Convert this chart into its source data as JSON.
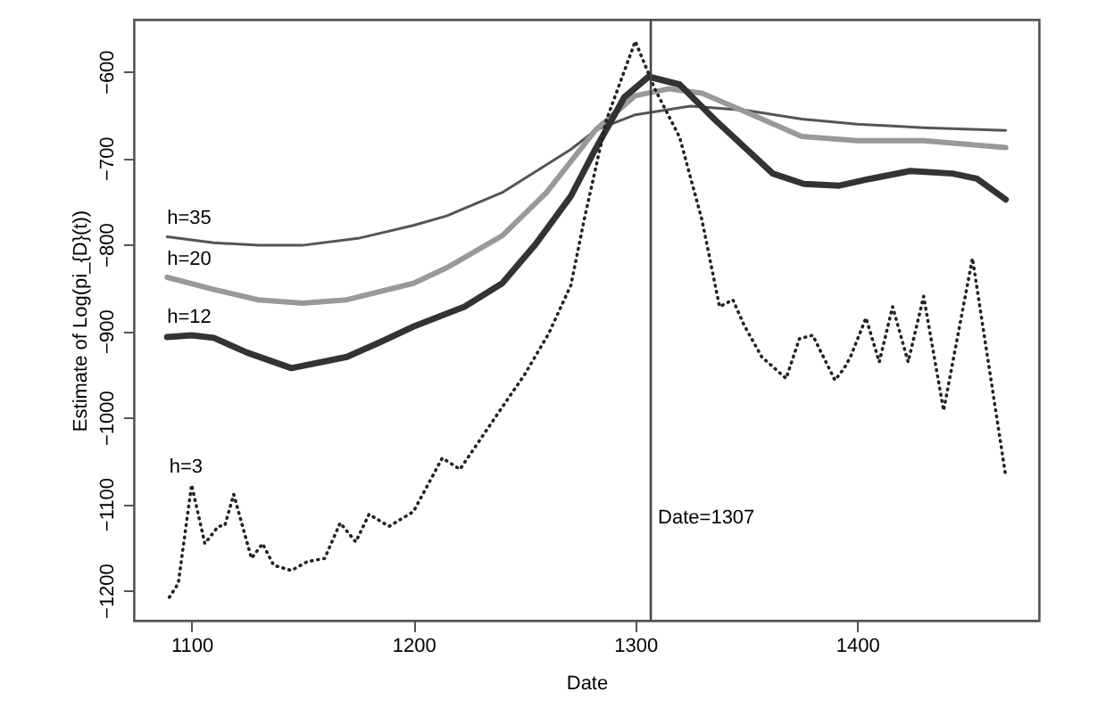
{
  "chart_data": {
    "type": "line",
    "xlabel": "Date",
    "ylabel": "Estimate of Log(pi_{D}(t))",
    "xlim": [
      1074,
      1482
    ],
    "ylim": [
      -1235,
      -540
    ],
    "xticks": [
      1100,
      1200,
      1300,
      1400
    ],
    "yticks": [
      -1200,
      -1100,
      -1000,
      -900,
      -800,
      -700,
      -600
    ],
    "marker": "none",
    "series": [
      {
        "name": "h=35",
        "color": "#555555",
        "line_style": "solid",
        "x": [
          1089,
          1110,
          1130,
          1150,
          1175,
          1200,
          1215,
          1240,
          1271,
          1282,
          1300,
          1325,
          1350,
          1375,
          1400,
          1430,
          1467
        ],
        "values": [
          -791,
          -798,
          -801,
          -801,
          -793,
          -778,
          -767,
          -740,
          -690,
          -668,
          -650,
          -640,
          -645,
          -655,
          -661,
          -665,
          -668
        ]
      },
      {
        "name": "h=20",
        "color": "#999999",
        "line_style": "solid",
        "x": [
          1089,
          1110,
          1130,
          1150,
          1170,
          1200,
          1215,
          1240,
          1260,
          1282,
          1300,
          1315,
          1330,
          1350,
          1375,
          1400,
          1430,
          1467
        ],
        "values": [
          -838,
          -852,
          -864,
          -868,
          -864,
          -845,
          -827,
          -790,
          -740,
          -668,
          -628,
          -620,
          -625,
          -647,
          -675,
          -680,
          -680,
          -688
        ]
      },
      {
        "name": "h=12",
        "color": "#333333",
        "line_style": "solid",
        "x": [
          1089,
          1100,
          1110,
          1125,
          1145,
          1170,
          1185,
          1200,
          1223,
          1240,
          1255,
          1271,
          1282,
          1295,
          1306,
          1320,
          1336,
          1362,
          1376,
          1392,
          1406,
          1424,
          1443,
          1454,
          1467
        ],
        "values": [
          -907,
          -905,
          -908,
          -925,
          -943,
          -930,
          -913,
          -895,
          -872,
          -845,
          -800,
          -744,
          -690,
          -630,
          -606,
          -615,
          -656,
          -718,
          -730,
          -732,
          -724,
          -715,
          -718,
          -724,
          -748
        ]
      },
      {
        "name": "h=3",
        "color": "#222222",
        "line_style": "dotted",
        "x": [
          1090,
          1094,
          1100,
          1106,
          1112,
          1115,
          1119,
          1127,
          1132,
          1137,
          1145,
          1152,
          1160,
          1167,
          1174,
          1180,
          1189,
          1200,
          1213,
          1221,
          1239,
          1250,
          1261,
          1271,
          1277,
          1287,
          1300,
          1309,
          1320,
          1330,
          1338,
          1344,
          1349,
          1357,
          1368,
          1374,
          1380,
          1390,
          1394,
          1397,
          1404,
          1410,
          1416,
          1423,
          1430,
          1439,
          1452,
          1467
        ],
        "values": [
          -1208,
          -1192,
          -1078,
          -1146,
          -1126,
          -1125,
          -1089,
          -1163,
          -1146,
          -1171,
          -1177,
          -1167,
          -1163,
          -1122,
          -1144,
          -1112,
          -1126,
          -1109,
          -1047,
          -1060,
          -992,
          -951,
          -903,
          -847,
          -771,
          -656,
          -565,
          -621,
          -676,
          -771,
          -872,
          -864,
          -893,
          -930,
          -955,
          -909,
          -905,
          -957,
          -944,
          -930,
          -885,
          -936,
          -872,
          -936,
          -860,
          -992,
          -816,
          -1068
        ]
      }
    ],
    "ref_lines": [
      {
        "axis": "x",
        "value": 1307,
        "label": "Date=1307"
      }
    ]
  }
}
